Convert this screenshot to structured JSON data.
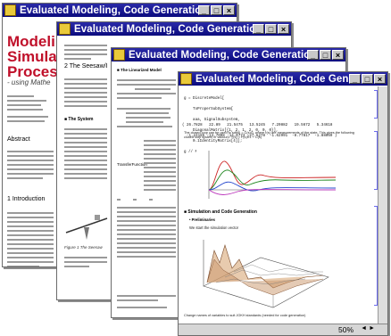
{
  "window_title": "Evaluated Modeling, Code Generation, and...",
  "controls": {
    "minimize": "_",
    "maximize": "□",
    "close": "×"
  },
  "window1": {
    "title_line1": "Modeling",
    "title_line2": "Simulati",
    "title_line3": "Process",
    "subtitle": "- using Mathe",
    "abstract_label": "Abstract",
    "intro_label": "1  Introduction"
  },
  "window2": {
    "section_label": "2  The Seesaw/I",
    "subsection_label": "■ The System",
    "figure_caption": "Figure 1 The Seesaw"
  },
  "window3": {
    "subsection_label": "■ The Linearized Model",
    "transfer_label": "TransferFunction"
  },
  "window4": {
    "code_lines": [
      "g = DiscreteModel[",
      "    ToProperSubSystem[",
      "    aaa, SignalSubsystem,",
      "    DiagonalMatrix[{1, 2, 1, 2, 0, 0, 0}],",
      "    0.1IdentityMatrix[4]];",
      "g // MatrixForm",
      "( 26.7828   22.89   21.5475   13.5245   7.20882   19.5672   5.34618",
      "  -1.24185 -14.7098 -14.6773 -27.5278  -1.62991  -8.77817  -1.88869 )"
    ],
    "para1": "The closed loop can be used to sdf(s) = C(s)G, where r(s) are measurements of the state. This gives the following closed loop system in vacuum: Y(s) = F(s)R1 + C(s)",
    "section_label": "■ Simulation and Code Generation",
    "subsection_label": "• Preliminaries",
    "para2": "We start the simulation vector",
    "caption": "Change names of variables to suit JOKH standards (needed for code generation)",
    "zoom": "50%",
    "nav_left": "◄",
    "nav_right": "►"
  },
  "colors": {
    "titlebar": "#0b0b7e",
    "doc_title": "#c0102a",
    "series1": "#cc2222",
    "series2": "#228822",
    "series3": "#2244cc",
    "series4": "#bb33bb"
  }
}
